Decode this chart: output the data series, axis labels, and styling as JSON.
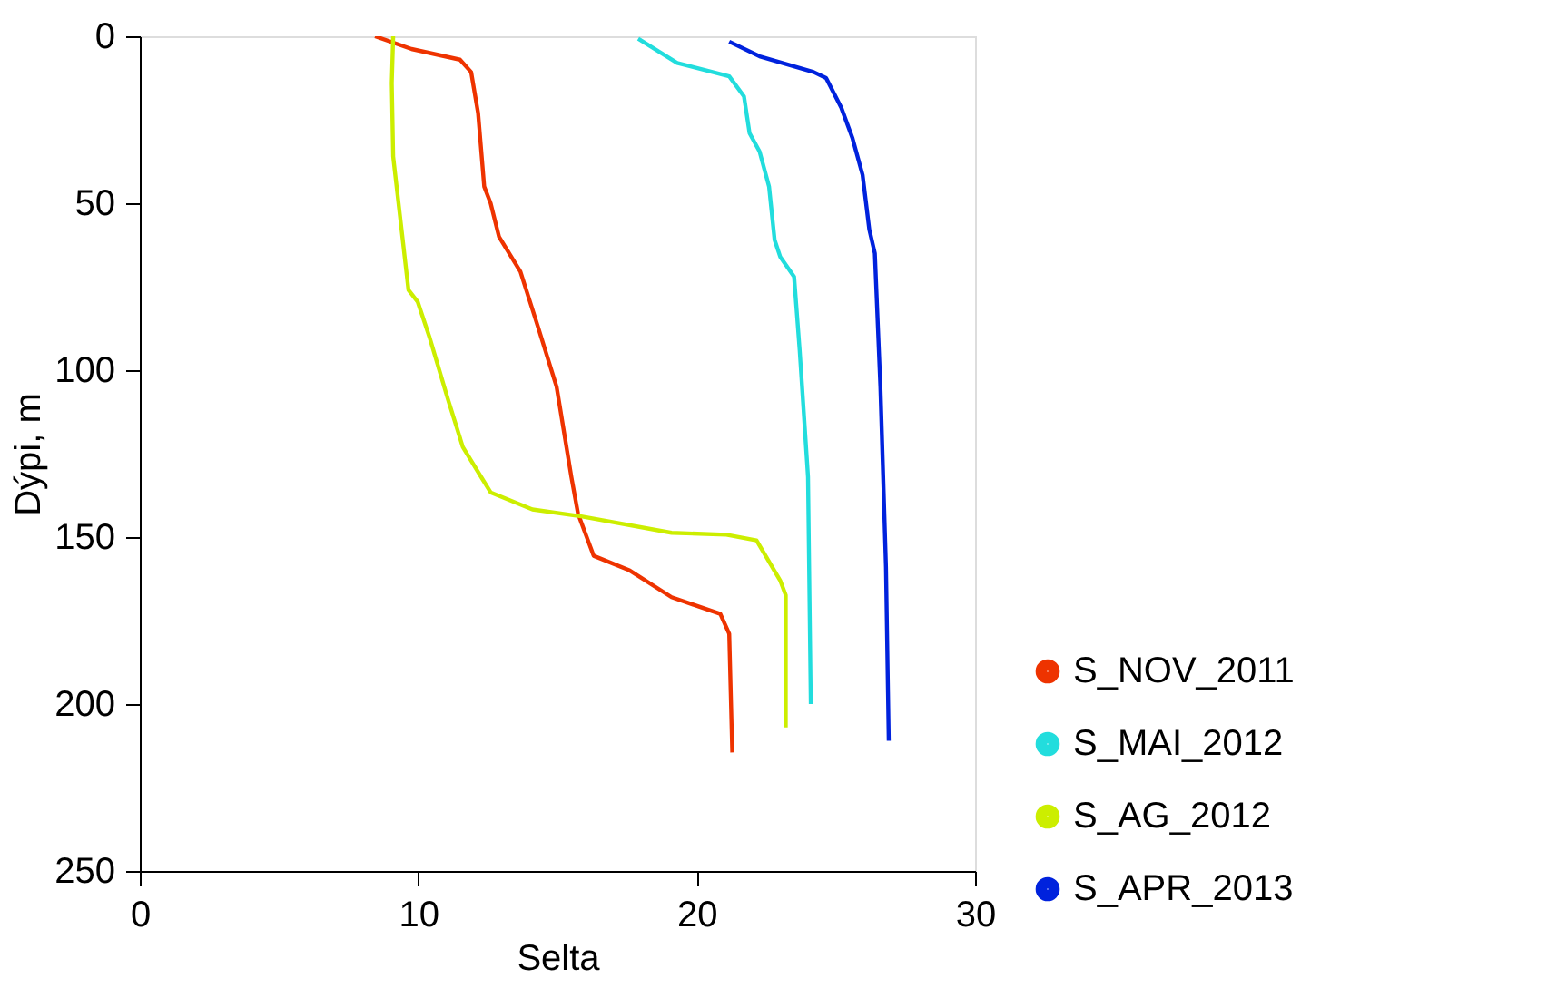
{
  "chart_data": {
    "type": "line",
    "xlabel": "Selta",
    "ylabel": "Dýpi, m",
    "xlim": [
      0,
      30
    ],
    "xticks": [
      0,
      10,
      20,
      30
    ],
    "ylim": [
      250,
      0
    ],
    "yticks": [
      0,
      50,
      100,
      150,
      200,
      250
    ],
    "grid": false,
    "legend": "bottom right",
    "marker": "none",
    "line_style": "solid",
    "series": [
      {
        "name": "S_NOV_2011",
        "color": "#ee3300",
        "x": [
          8.45,
          9.76,
          11.5,
          11.9,
          12.15,
          12.37,
          12.6,
          12.9,
          13.67,
          14.3,
          14.97,
          15.5,
          15.74,
          16.3,
          17.6,
          19.1,
          20.85,
          21.17,
          21.28
        ],
        "values": [
          0,
          3.8,
          7,
          10.7,
          23,
          45,
          50,
          60,
          70.5,
          87,
          105,
          132,
          143,
          155.6,
          160,
          168,
          173,
          179,
          214.5
        ]
      },
      {
        "name": "S_MAI_2012",
        "color": "#22dddd",
        "x": [
          17.9,
          19.3,
          21.17,
          21.7,
          21.9,
          22.26,
          22.6,
          22.8,
          23.0,
          23.5,
          23.7,
          24.0,
          24.1
        ],
        "values": [
          0.7,
          8,
          12,
          18,
          29,
          34.5,
          45,
          61,
          66,
          72,
          94,
          132,
          200
        ]
      },
      {
        "name": "S_AG_2012",
        "color": "#ccee00",
        "x": [
          9.1,
          9.05,
          9.1,
          9.43,
          9.65,
          9.98,
          10.4,
          11.06,
          11.6,
          12.26,
          12.6,
          14.1,
          15.85,
          19.1,
          21.07,
          22.15,
          23.0,
          23.2,
          23.2
        ],
        "values": [
          0,
          14,
          36,
          60,
          76,
          79.5,
          90,
          108.5,
          123,
          132,
          136.6,
          141.7,
          143.8,
          148.7,
          149.3,
          151,
          163,
          167.4,
          207
        ]
      },
      {
        "name": "S_APR_2013",
        "color": "#0022dd",
        "x": [
          21.17,
          22.26,
          24.2,
          24.65,
          25.2,
          25.6,
          25.96,
          26.2,
          26.4,
          26.6,
          26.8,
          26.9
        ],
        "values": [
          1.6,
          6,
          10.7,
          12.5,
          21.5,
          30.6,
          41.5,
          57.8,
          65,
          105,
          159,
          211
        ]
      }
    ]
  }
}
